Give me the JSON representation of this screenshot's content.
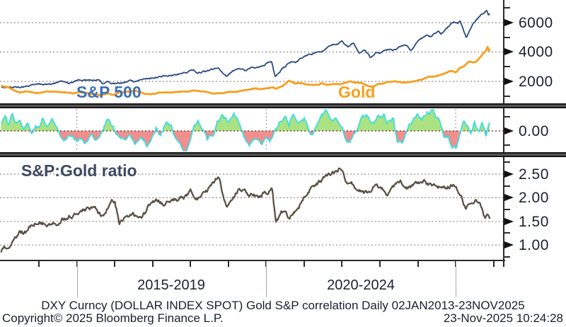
{
  "footer": {
    "description": "DXY Curncy (DOLLAR INDEX SPOT) Gold S&P correlation Daily 02JAN2013-23NOV2025",
    "copyright": "Copyright© 2025 Bloomberg Finance L.P.",
    "timestamp": "23-Nov-2025 10:24:28"
  },
  "annotations": {
    "sp500": "S&P 500",
    "gold": "Gold",
    "ratio": "S&P:Gold ratio"
  },
  "colors": {
    "sp500": "#2a4a82",
    "sp500_label": "#3b6eb5",
    "gold": "#f79f1f",
    "correlation_line": "#3adde0",
    "correlation_pos_fill": "#abe282",
    "correlation_neg_fill": "#f18f8f",
    "ratio_line": "#5a5244",
    "ratio_label": "#3d4961",
    "axis": "#2b2b2b",
    "grid": "#8f8f8f",
    "zero_line": "#7a4638",
    "text": "#1a2130"
  },
  "x_axis": {
    "start_year": 2013,
    "end_year": 2025.9,
    "year_ticks": [
      2014,
      2015,
      2016,
      2017,
      2018,
      2019,
      2020,
      2021,
      2022,
      2023,
      2024,
      2025,
      2026
    ],
    "period_dividers": [
      2015,
      2020,
      2025
    ],
    "period_labels": [
      {
        "label": "2015-2019",
        "center_year": 2017.5
      },
      {
        "label": "2020-2024",
        "center_year": 2022.5
      }
    ]
  },
  "chart_data": [
    {
      "panel": "top",
      "type": "line",
      "title": "S&P 500 and Gold price",
      "ylim": [
        506,
        7542
      ],
      "yticks_major": [
        {
          "value": 6000,
          "label": "6000"
        },
        {
          "value": 4000,
          "label": "4000"
        },
        {
          "value": 2000,
          "label": "2000"
        }
      ],
      "yticks_minor": [
        7000,
        5000,
        3000,
        1000
      ],
      "gridlines": [
        6000,
        4000,
        2000
      ],
      "series": [
        {
          "name": "S&P 500",
          "color_key": "sp500",
          "x": [
            2013.0,
            2013.2,
            2013.5,
            2013.8,
            2014.0,
            2014.1,
            2014.4,
            2014.7,
            2014.8,
            2015.0,
            2015.15,
            2015.4,
            2015.6,
            2015.67,
            2015.8,
            2016.05,
            2016.12,
            2016.4,
            2016.5,
            2016.7,
            2017.0,
            2017.3,
            2017.6,
            2018.0,
            2018.08,
            2018.15,
            2018.4,
            2018.73,
            2018.95,
            2019.1,
            2019.35,
            2019.45,
            2019.6,
            2019.8,
            2020.0,
            2020.14,
            2020.24,
            2020.45,
            2020.6,
            2020.7,
            2020.78,
            2021.0,
            2021.3,
            2021.6,
            2021.9,
            2022.0,
            2022.07,
            2022.15,
            2022.3,
            2022.45,
            2022.6,
            2022.75,
            2022.9,
            2023.0,
            2023.2,
            2023.4,
            2023.55,
            2023.7,
            2023.82,
            2024.0,
            2024.25,
            2024.35,
            2024.55,
            2024.62,
            2024.8,
            2024.95,
            2025.05,
            2025.12,
            2025.2,
            2025.28,
            2025.4,
            2025.55,
            2025.7,
            2025.82,
            2025.87,
            2025.9
          ],
          "values": [
            1600,
            1570,
            1640,
            1710,
            1830,
            1780,
            1880,
            1985,
            1910,
            2060,
            2100,
            2110,
            2090,
            1890,
            1950,
            1880,
            1830,
            2070,
            2000,
            2170,
            2270,
            2360,
            2440,
            2700,
            2820,
            2590,
            2670,
            2915,
            2380,
            2700,
            2920,
            2750,
            2990,
            2930,
            3230,
            3380,
            2280,
            2900,
            3220,
            3350,
            3270,
            3720,
            3960,
            4280,
            4600,
            4790,
            4500,
            4350,
            4580,
            3900,
            4150,
            3620,
            3950,
            3850,
            4100,
            4180,
            4450,
            4500,
            4150,
            4770,
            5200,
            5050,
            5450,
            5250,
            5750,
            6050,
            5900,
            6120,
            5600,
            4980,
            5650,
            6200,
            6600,
            6900,
            6550,
            6650
          ]
        },
        {
          "name": "Gold",
          "color_key": "gold",
          "x": [
            2013.0,
            2013.2,
            2013.35,
            2013.5,
            2013.65,
            2013.9,
            2014.0,
            2014.2,
            2014.5,
            2014.75,
            2014.9,
            2015.05,
            2015.3,
            2015.6,
            2015.85,
            2015.95,
            2016.15,
            2016.5,
            2016.55,
            2016.8,
            2016.95,
            2017.2,
            2017.45,
            2017.7,
            2017.95,
            2018.05,
            2018.3,
            2018.6,
            2018.8,
            2019.0,
            2019.2,
            2019.45,
            2019.7,
            2019.85,
            2020.0,
            2020.2,
            2020.25,
            2020.45,
            2020.6,
            2020.75,
            2020.9,
            2021.0,
            2021.2,
            2021.4,
            2021.45,
            2021.6,
            2021.8,
            2021.95,
            2022.15,
            2022.2,
            2022.35,
            2022.55,
            2022.7,
            2022.8,
            2022.95,
            2023.1,
            2023.25,
            2023.4,
            2023.6,
            2023.75,
            2023.85,
            2024.0,
            2024.15,
            2024.3,
            2024.45,
            2024.6,
            2024.8,
            2024.9,
            2025.0,
            2025.1,
            2025.25,
            2025.35,
            2025.45,
            2025.55,
            2025.65,
            2025.75,
            2025.8,
            2025.84,
            2025.87,
            2025.9
          ],
          "values": [
            1700,
            1600,
            1380,
            1230,
            1320,
            1200,
            1220,
            1330,
            1290,
            1220,
            1180,
            1280,
            1190,
            1090,
            1135,
            1060,
            1240,
            1320,
            1360,
            1170,
            1130,
            1250,
            1240,
            1300,
            1300,
            1350,
            1330,
            1180,
            1200,
            1290,
            1280,
            1410,
            1510,
            1470,
            1520,
            1590,
            1480,
            1720,
            2060,
            1870,
            1880,
            1850,
            1730,
            1780,
            1900,
            1770,
            1790,
            1800,
            1970,
            2040,
            1910,
            1840,
            1700,
            1630,
            1800,
            1870,
            1990,
            2020,
            1920,
            1940,
            1985,
            2050,
            2160,
            2330,
            2330,
            2450,
            2650,
            2720,
            2630,
            2900,
            3100,
            3350,
            3290,
            3350,
            3650,
            4000,
            4100,
            4380,
            4050,
            4200
          ]
        }
      ]
    },
    {
      "panel": "middle",
      "type": "area",
      "title": "Gold S&P correlation",
      "ylim": [
        -0.725,
        0.775
      ],
      "yticks_major": [
        {
          "value": 0,
          "label": "0.00"
        }
      ],
      "yticks_minor": [
        0.5,
        -0.5
      ],
      "zero_line": 0,
      "series": [
        {
          "name": "correlation",
          "color_key": "correlation_line",
          "x": [
            2013.0,
            2013.1,
            2013.2,
            2013.3,
            2013.4,
            2013.5,
            2013.6,
            2013.7,
            2013.8,
            2013.9,
            2014.0,
            2014.1,
            2014.2,
            2014.35,
            2014.5,
            2014.65,
            2014.8,
            2014.95,
            2015.1,
            2015.25,
            2015.4,
            2015.55,
            2015.7,
            2015.8,
            2015.95,
            2016.1,
            2016.25,
            2016.4,
            2016.55,
            2016.7,
            2016.85,
            2017.0,
            2017.1,
            2017.2,
            2017.35,
            2017.5,
            2017.6,
            2017.75,
            2017.9,
            2018.0,
            2018.1,
            2018.2,
            2018.3,
            2018.45,
            2018.6,
            2018.7,
            2018.85,
            2019.0,
            2019.15,
            2019.3,
            2019.4,
            2019.55,
            2019.7,
            2019.85,
            2020.0,
            2020.1,
            2020.2,
            2020.35,
            2020.5,
            2020.6,
            2020.7,
            2020.85,
            2021.0,
            2021.1,
            2021.2,
            2021.3,
            2021.45,
            2021.6,
            2021.7,
            2021.85,
            2022.0,
            2022.1,
            2022.2,
            2022.35,
            2022.5,
            2022.65,
            2022.8,
            2022.95,
            2023.1,
            2023.2,
            2023.35,
            2023.45,
            2023.6,
            2023.75,
            2023.9,
            2024.0,
            2024.1,
            2024.25,
            2024.4,
            2024.5,
            2024.6,
            2024.7,
            2024.8,
            2024.9,
            2025.0,
            2025.1,
            2025.2,
            2025.3,
            2025.4,
            2025.5,
            2025.6,
            2025.7,
            2025.8,
            2025.85,
            2025.9
          ],
          "values": [
            0.3,
            0.55,
            0.2,
            0.65,
            0.3,
            0.5,
            0.1,
            0.35,
            -0.1,
            0.2,
            0.1,
            0.45,
            0.15,
            0.4,
            0.05,
            -0.25,
            -0.15,
            -0.3,
            -0.2,
            -0.35,
            -0.15,
            -0.3,
            0.1,
            0.45,
            0.1,
            -0.2,
            -0.4,
            -0.2,
            -0.45,
            -0.25,
            -0.5,
            -0.2,
            0.15,
            -0.1,
            0.3,
            0.1,
            -0.3,
            -0.6,
            -0.7,
            -0.3,
            0.2,
            0.4,
            0.1,
            -0.35,
            -0.2,
            0.3,
            0.55,
            0.35,
            0.6,
            0.25,
            -0.2,
            -0.5,
            -0.35,
            -0.55,
            -0.3,
            -0.5,
            -0.1,
            0.4,
            0.6,
            0.3,
            0.55,
            0.25,
            0.45,
            0.2,
            -0.1,
            0.1,
            0.5,
            0.65,
            0.3,
            0.5,
            0.2,
            -0.3,
            -0.45,
            -0.1,
            0.35,
            0.55,
            0.2,
            0.45,
            0.6,
            0.3,
            0.5,
            -0.35,
            -0.3,
            0.2,
            0.45,
            0.65,
            0.35,
            0.6,
            0.72,
            0.45,
            0.2,
            -0.3,
            -0.15,
            -0.5,
            -0.6,
            -0.2,
            0.35,
            0.15,
            -0.1,
            0.3,
            -0.15,
            0.25,
            -0.2,
            0.15,
            0.3
          ]
        }
      ]
    },
    {
      "panel": "bottom",
      "type": "line",
      "title": "S&P:Gold ratio",
      "ylim": [
        0.673,
        2.859
      ],
      "yticks_major": [
        {
          "value": 2.5,
          "label": "2.50"
        },
        {
          "value": 2.0,
          "label": "2.00"
        },
        {
          "value": 1.5,
          "label": "1.50"
        },
        {
          "value": 1.0,
          "label": "1.00"
        }
      ],
      "yticks_minor": [
        2.75,
        2.25,
        1.75,
        1.25,
        0.75
      ],
      "gridlines": [
        2.5,
        2.0,
        1.5,
        1.0
      ],
      "series": [
        {
          "name": "S&P:Gold ratio",
          "color_key": "ratio_line",
          "x": [
            2013.0,
            2013.2,
            2013.5,
            2013.7,
            2014.0,
            2014.2,
            2014.5,
            2014.8,
            2015.0,
            2015.2,
            2015.5,
            2015.62,
            2015.9,
            2016.0,
            2016.12,
            2016.3,
            2016.6,
            2016.8,
            2017.0,
            2017.3,
            2017.6,
            2017.9,
            2018.0,
            2018.12,
            2018.4,
            2018.73,
            2018.95,
            2019.3,
            2019.5,
            2019.8,
            2020.0,
            2020.15,
            2020.25,
            2020.4,
            2020.6,
            2020.8,
            2021.0,
            2021.2,
            2021.4,
            2021.6,
            2021.8,
            2021.95,
            2022.1,
            2022.25,
            2022.4,
            2022.6,
            2022.75,
            2022.9,
            2023.05,
            2023.2,
            2023.4,
            2023.6,
            2023.8,
            2024.0,
            2024.2,
            2024.35,
            2024.5,
            2024.7,
            2024.9,
            2025.0,
            2025.1,
            2025.25,
            2025.4,
            2025.5,
            2025.6,
            2025.7,
            2025.78,
            2025.85,
            2025.9
          ],
          "values": [
            0.88,
            1.0,
            1.25,
            1.28,
            1.53,
            1.43,
            1.5,
            1.65,
            1.62,
            1.75,
            1.78,
            1.65,
            1.85,
            1.93,
            1.48,
            1.63,
            1.58,
            1.7,
            1.9,
            1.88,
            1.93,
            2.05,
            2.15,
            1.98,
            2.08,
            2.45,
            1.85,
            2.2,
            2.08,
            2.02,
            2.13,
            2.15,
            1.48,
            1.68,
            1.57,
            1.75,
            2.0,
            2.25,
            2.33,
            2.42,
            2.5,
            2.65,
            2.35,
            2.3,
            2.2,
            2.1,
            2.15,
            2.3,
            2.2,
            2.1,
            2.25,
            2.3,
            2.2,
            2.31,
            2.35,
            2.25,
            2.3,
            2.2,
            2.26,
            2.25,
            2.1,
            1.78,
            1.85,
            1.9,
            1.92,
            1.78,
            1.55,
            1.68,
            1.6
          ]
        }
      ]
    }
  ]
}
